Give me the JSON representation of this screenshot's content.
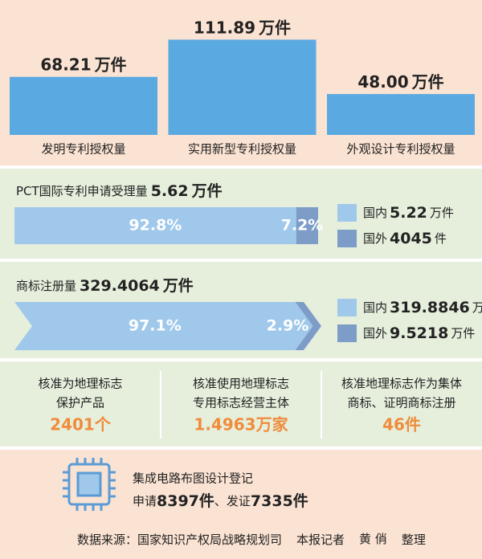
{
  "patents": {
    "items": [
      {
        "name": "发明专利授权量",
        "value": 68.21,
        "label": "68.21",
        "unit": "万件"
      },
      {
        "name": "实用新型专利授权量",
        "value": 111.89,
        "label": "111.89",
        "unit": "万件"
      },
      {
        "name": "外观设计专利授权量",
        "value": 48,
        "label": "48.00",
        "unit": "万件"
      }
    ]
  },
  "pct": {
    "title": "PCT国际专利申请受理量",
    "total": "5.62",
    "unit": "万件",
    "shares": [
      {
        "name": "国内",
        "value": 92.8,
        "label": "92.8%",
        "amount": "5.22",
        "unit": "万件",
        "color": "#9fc8ea"
      },
      {
        "name": "国外",
        "value": 7.2,
        "label": "7.2%",
        "amount": "4045",
        "unit": "件",
        "color": "#7d9dc8"
      }
    ]
  },
  "trademark": {
    "title": "商标注册量",
    "total": "329.4064",
    "unit": "万件",
    "shares": [
      {
        "name": "国内",
        "value": 97.1,
        "label": "97.1%",
        "amount": "319.8846",
        "unit": "万件",
        "color": "#9fc8ea"
      },
      {
        "name": "国外",
        "value": 2.9,
        "label": "2.9%",
        "amount": "9.5218",
        "unit": "万件",
        "color": "#7d9dc8"
      }
    ]
  },
  "geo": {
    "items": [
      {
        "lines": [
          "核准为地理标志",
          "保护产品"
        ],
        "figure": "2401个"
      },
      {
        "lines": [
          "核准使用地理标志",
          "专用标志经营主体"
        ],
        "figure": "1.4963万家"
      },
      {
        "lines": [
          "核准地理标志作为集体",
          "商标、证明商标注册"
        ],
        "figure": "46件"
      }
    ]
  },
  "ic": {
    "title": "集成电路布图设计登记",
    "parts": [
      "申请",
      "8397件",
      "、发证",
      "7335件"
    ]
  },
  "footer": {
    "source": "数据来源：国家知识产权局战略规划司",
    "reporter": "本报记者",
    "name": "黄 俏",
    "role": "整理"
  }
}
